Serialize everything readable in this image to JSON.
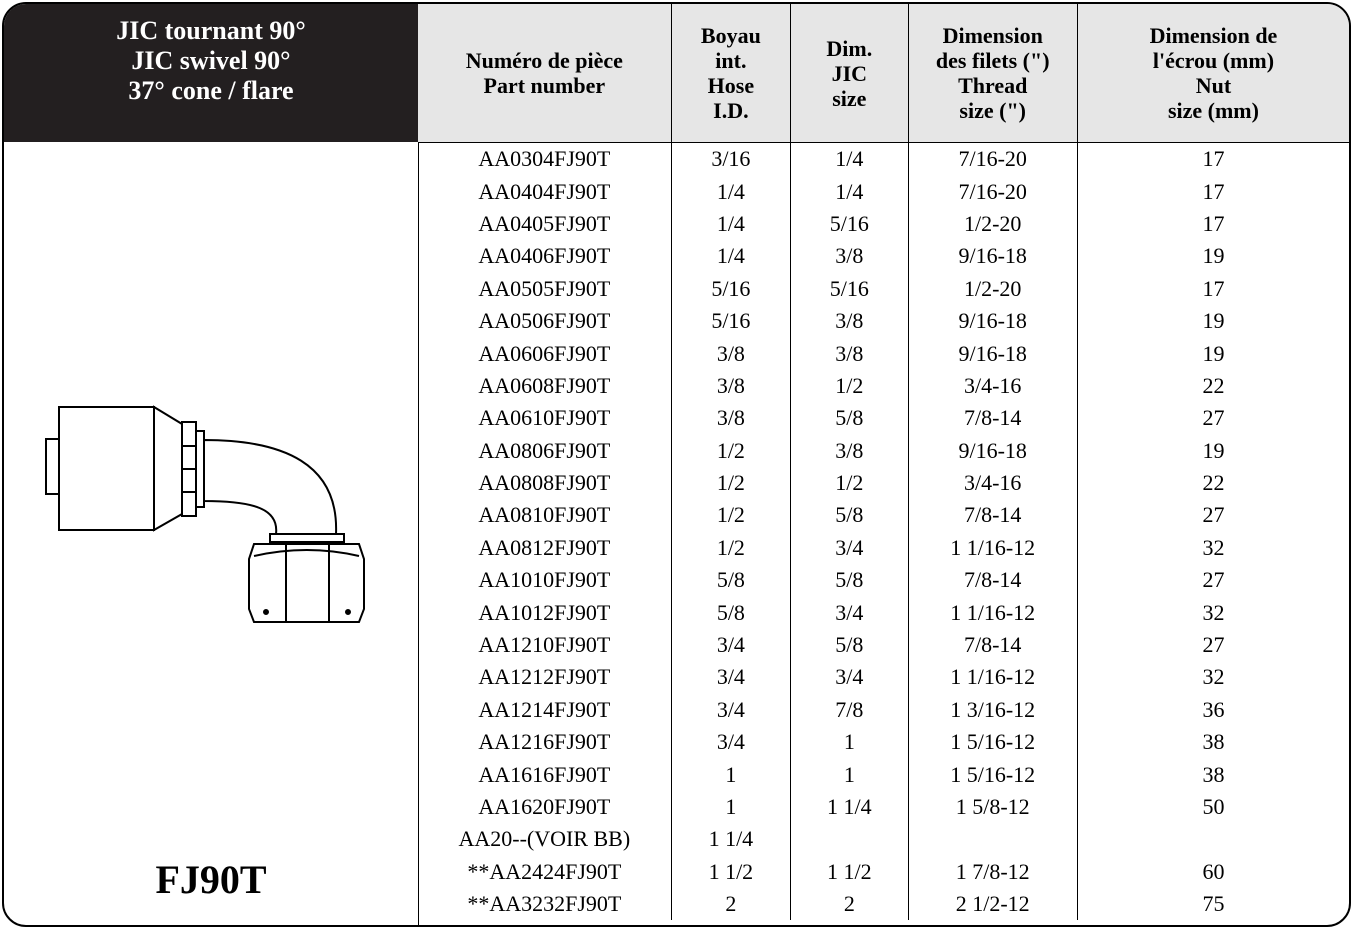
{
  "panel": {
    "title_lines": [
      "JIC tournant 90°",
      "JIC swivel 90°",
      "37° cone / flare"
    ],
    "code": "FJ90T"
  },
  "table": {
    "headers": [
      [
        "Numéro de pièce",
        "Part number"
      ],
      [
        "Boyau",
        "int.",
        "Hose",
        "I.D."
      ],
      [
        "Dim.",
        "JIC",
        "size"
      ],
      [
        "Dimension",
        "des filets (\")",
        "Thread",
        "size (\")"
      ],
      [
        "Dimension de",
        "l'écrou (mm)",
        "Nut",
        "size (mm)"
      ]
    ],
    "rows": [
      [
        "AA0304FJ90T",
        "3/16",
        "1/4",
        "7/16-20",
        17
      ],
      [
        "AA0404FJ90T",
        "1/4",
        "1/4",
        "7/16-20",
        17
      ],
      [
        "AA0405FJ90T",
        "1/4",
        "5/16",
        "1/2-20",
        17
      ],
      [
        "AA0406FJ90T",
        "1/4",
        "3/8",
        "9/16-18",
        19
      ],
      [
        "AA0505FJ90T",
        "5/16",
        "5/16",
        "1/2-20",
        17
      ],
      [
        "AA0506FJ90T",
        "5/16",
        "3/8",
        "9/16-18",
        19
      ],
      [
        "AA0606FJ90T",
        "3/8",
        "3/8",
        "9/16-18",
        19
      ],
      [
        "AA0608FJ90T",
        "3/8",
        "1/2",
        "3/4-16",
        22
      ],
      [
        "AA0610FJ90T",
        "3/8",
        "5/8",
        "7/8-14",
        27
      ],
      [
        "AA0806FJ90T",
        "1/2",
        "3/8",
        "9/16-18",
        19
      ],
      [
        "AA0808FJ90T",
        "1/2",
        "1/2",
        "3/4-16",
        22
      ],
      [
        "AA0810FJ90T",
        "1/2",
        "5/8",
        "7/8-14",
        27
      ],
      [
        "AA0812FJ90T",
        "1/2",
        "3/4",
        "1 1/16-12",
        32
      ],
      [
        "AA1010FJ90T",
        "5/8",
        "5/8",
        "7/8-14",
        27
      ],
      [
        "AA1012FJ90T",
        "5/8",
        "3/4",
        "1 1/16-12",
        32
      ],
      [
        "AA1210FJ90T",
        "3/4",
        "5/8",
        "7/8-14",
        27
      ],
      [
        "AA1212FJ90T",
        "3/4",
        "3/4",
        "1 1/16-12",
        32
      ],
      [
        "AA1214FJ90T",
        "3/4",
        "7/8",
        "1 3/16-12",
        36
      ],
      [
        "AA1216FJ90T",
        "3/4",
        "1",
        "1 5/16-12",
        38
      ],
      [
        "AA1616FJ90T",
        "1",
        "1",
        "1 5/16-12",
        38
      ],
      [
        "AA1620FJ90T",
        "1",
        "1 1/4",
        "1 5/8-12",
        50
      ],
      [
        "AA20--(VOIR BB)",
        "1 1/4",
        null,
        null,
        null
      ],
      [
        "**AA2424FJ90T",
        "1 1/2",
        "1 1/2",
        "1 7/8-12",
        60
      ],
      [
        "**AA3232FJ90T",
        "2",
        "2",
        "2 1/2-12",
        75
      ]
    ]
  }
}
